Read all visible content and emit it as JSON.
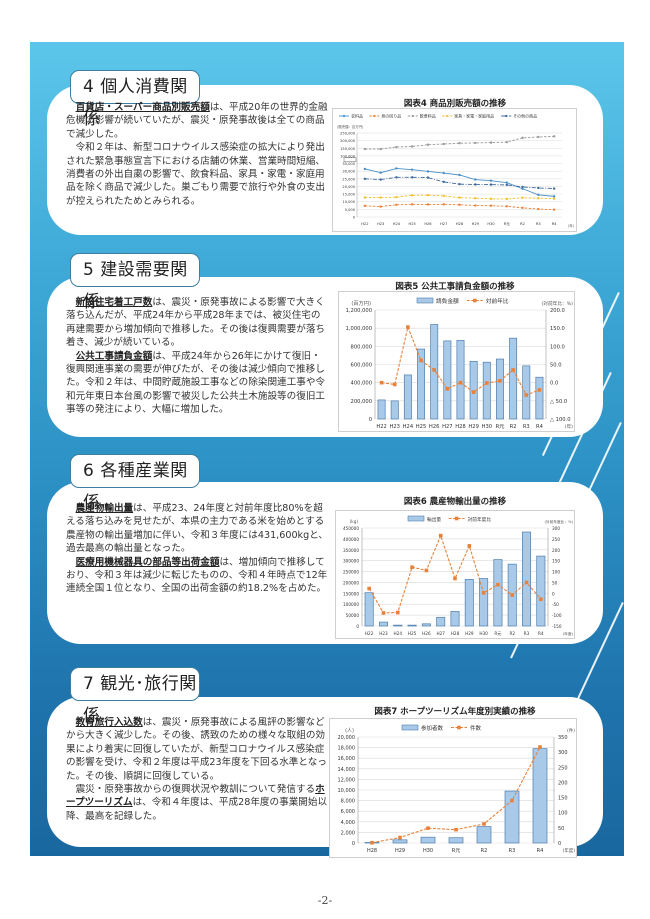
{
  "page_number": "-2-",
  "colors": {
    "panel_top": "#5cc6ea",
    "panel_bottom": "#1a679f",
    "tab_border": "#3c7ea0",
    "bar_fill": "#a9c9e8",
    "bar_stroke": "#4f7fae",
    "line_orange": "#e8823a"
  },
  "sections": [
    {
      "heading": "4 個人消費関係",
      "paragraphs": [
        {
          "keyword": "百貨店・スーパー商品別販売額",
          "text": "は、平成20年の世界的金融危機の影響が続いていたが、震災・原発事故後は全ての商品で減少した。"
        },
        {
          "keyword": "",
          "text": "令和２年は、新型コロナウイルス感染症の拡大により発出された緊急事態宣言下における店舗の休業、営業時間短縮、消費者の外出自粛の影響で、飲食料品、家具・家電・家庭用品を除く商品で減少した。巣ごもり需要で旅行や外食の支出が控えられたためとみられる。"
        }
      ]
    },
    {
      "heading": "5 建設需要関係",
      "paragraphs": [
        {
          "keyword": "新設住宅着工戸数",
          "text": "は、震災・原発事故による影響で大きく落ち込んだが、平成24年から平成28年までは、被災住宅の再建需要から増加傾向で推移した。その後は復興需要が落ち着き、減少が続いている。"
        },
        {
          "keyword": "公共工事請負金額",
          "text": "は、平成24年から26年にかけて復旧・復興関連事業の需要が伸びたが、その後は減少傾向で推移した。令和２年は、中間貯蔵施設工事などの除染関連工事や令和元年東日本台風の影響で被災した公共土木施設等の復旧工事等の発注により、大幅に増加した。"
        }
      ]
    },
    {
      "heading": "6 各種産業関係",
      "paragraphs": [
        {
          "keyword": "農産物輸出量",
          "text": "は、平成23、24年度と対前年度比80%を超える落ち込みを見せたが、本県の主力である米を始めとする農産物の輸出量増加に伴い、令和３年度には431,600kgと、過去最高の輸出量となった。"
        },
        {
          "keyword": "医療用機械器具の部品等出荷金額",
          "text": "は、増加傾向で推移しており、令和３年は減少に転じたものの、令和４年時点で12年連続全国１位となり、全国の出荷金額の約18.2%を占めた。"
        }
      ]
    },
    {
      "heading": "7 観光･旅行関係",
      "paragraphs": [
        {
          "keyword": "教育旅行入込数",
          "text": "は、震災・原発事故による風評の影響などから大きく減少した。その後、誘致のための様々な取組の効果により着実に回復していたが、新型コロナウイルス感染症の影響を受け、令和２年度は平成23年度を下回る水準となった。その後、順調に回復している。"
        },
        {
          "prefix": "震災・原発事故からの復興状況や教訓について発信する",
          "keyword": "ホープツーリズム",
          "text": "は、令和４年度は、平成28年度の事業開始以降、最高を記録した。"
        }
      ]
    }
  ],
  "chart_data": [
    {
      "type": "line",
      "title": "図表4  商品別販売額の推移",
      "ylabel": "(販売額：百万円)",
      "xlabel": "(年)",
      "categories": [
        "H22",
        "H23",
        "H24",
        "H25",
        "H26",
        "H27",
        "H28",
        "H29",
        "H30",
        "R元",
        "R2",
        "R3",
        "R4"
      ],
      "y_ticks": [
        "0",
        "5,000",
        "10,000",
        "15,000",
        "20,000",
        "25,000",
        "30,000",
        "35,000",
        "100,000",
        "150,000",
        "200,000",
        "250,000"
      ],
      "axis_break": true,
      "series": [
        {
          "name": "衣料品",
          "color": "#4a90c8",
          "dash": "solid",
          "values": [
            31500,
            29000,
            31800,
            31000,
            29800,
            28800,
            27500,
            24500,
            23800,
            22500,
            18500,
            14500,
            13500
          ]
        },
        {
          "name": "身の回り品",
          "color": "#e8823a",
          "dash": "dashed",
          "values": [
            7300,
            6800,
            8000,
            8300,
            8200,
            8300,
            8000,
            7500,
            7400,
            7000,
            6000,
            5200,
            4800
          ]
        },
        {
          "name": "飲食料品",
          "color": "#9a9a9a",
          "dash": "dashed",
          "values": [
            145000,
            145000,
            158000,
            162000,
            173000,
            178000,
            183000,
            185000,
            187000,
            190000,
            218000,
            224000,
            228000
          ]
        },
        {
          "name": "家具・家電・家庭用品",
          "color": "#f2c12e",
          "dash": "dashed",
          "values": [
            12800,
            12700,
            13000,
            14200,
            14300,
            13800,
            12700,
            12300,
            11900,
            11800,
            12600,
            12300,
            12000
          ]
        },
        {
          "name": "その他の商品",
          "color": "#3a6aa0",
          "dash": "dashdot",
          "values": [
            25000,
            24500,
            26000,
            26000,
            25800,
            23000,
            21500,
            21300,
            21200,
            21000,
            19700,
            19000,
            18600
          ]
        }
      ],
      "legend_position": "top",
      "grid": true
    },
    {
      "type": "bar",
      "title": "図表5  公共工事請負金額の推移",
      "ylabel": "(百万円)",
      "y2label": "(対前年比：%)",
      "xlabel": "(年)",
      "categories": [
        "H22",
        "H23",
        "H24",
        "H25",
        "H26",
        "H27",
        "H28",
        "H29",
        "H30",
        "R元",
        "R2",
        "R3",
        "R4"
      ],
      "ylim": [
        0,
        1200000
      ],
      "y2lim": [
        -100,
        200
      ],
      "y_ticks": [
        "0",
        "200,000",
        "400,000",
        "600,000",
        "800,000",
        "1,000,000",
        "1,200,000"
      ],
      "y2_ticks": [
        "△ 100.0",
        "△ 50.0",
        "0.0",
        "50.0",
        "100.0",
        "150.0",
        "200.0"
      ],
      "series": [
        {
          "name": "請負金額",
          "type": "bar",
          "values": [
            210000,
            200000,
            485000,
            770000,
            1040000,
            860000,
            865000,
            635000,
            625000,
            660000,
            890000,
            585000,
            460000
          ]
        },
        {
          "name": "対前年比",
          "type": "line",
          "axis": "right",
          "values": [
            0,
            -5,
            153,
            61,
            35,
            -17,
            0,
            -26,
            -1,
            5,
            35,
            -34,
            -20
          ]
        }
      ],
      "legend_position": "top",
      "grid": true
    },
    {
      "type": "bar",
      "title": "図表6  農産物輸出量の推移",
      "ylabel": "(kg)",
      "y2label": "(対前年度比：%)",
      "xlabel": "(年度)",
      "categories": [
        "H22",
        "H23",
        "H24",
        "H25",
        "H26",
        "H27",
        "H28",
        "H29",
        "H30",
        "R元",
        "R2",
        "R3",
        "R4"
      ],
      "ylim": [
        0,
        450000
      ],
      "y2lim": [
        -150,
        300
      ],
      "y_ticks": [
        "0",
        "50000",
        "100000",
        "150000",
        "200000",
        "250000",
        "300000",
        "350000",
        "400000",
        "450000"
      ],
      "y2_ticks": [
        "-150",
        "-100",
        "-50",
        "0",
        "50",
        "100",
        "150",
        "200",
        "250",
        "300"
      ],
      "series": [
        {
          "name": "輸出量",
          "type": "bar",
          "values": [
            153000,
            18000,
            4000,
            4000,
            10000,
            40000,
            67000,
            214000,
            218000,
            305000,
            284000,
            431600,
            321000
          ]
        },
        {
          "name": "対前年度比",
          "type": "line",
          "axis": "right",
          "values": [
            22,
            -90,
            -88,
            120,
            105,
            265,
            68,
            218,
            2,
            40,
            -8,
            50,
            -27
          ]
        }
      ],
      "legend_position": "top",
      "grid": true
    },
    {
      "type": "bar",
      "title": "図表7  ホープツーリズム年度別実績の推移",
      "ylabel": "(人)",
      "y2label": "(件)",
      "xlabel": "(年度)",
      "categories": [
        "H28",
        "H29",
        "H30",
        "R元",
        "R2",
        "R3",
        "R4"
      ],
      "ylim": [
        0,
        20000
      ],
      "y2lim": [
        0,
        350
      ],
      "y_ticks": [
        "0",
        "2,000",
        "4,000",
        "6,000",
        "8,000",
        "10,000",
        "12,000",
        "14,000",
        "16,000",
        "18,000",
        "20,000"
      ],
      "y2_ticks": [
        "0",
        "50",
        "100",
        "150",
        "200",
        "250",
        "300",
        "350"
      ],
      "series": [
        {
          "name": "参加者数",
          "type": "bar",
          "values": [
            100,
            600,
            1100,
            1000,
            3100,
            9800,
            17800
          ]
        },
        {
          "name": "件数",
          "type": "line",
          "axis": "right",
          "values": [
            1,
            18,
            49,
            44,
            63,
            140,
            317
          ]
        }
      ],
      "legend_position": "top",
      "grid": true
    }
  ]
}
